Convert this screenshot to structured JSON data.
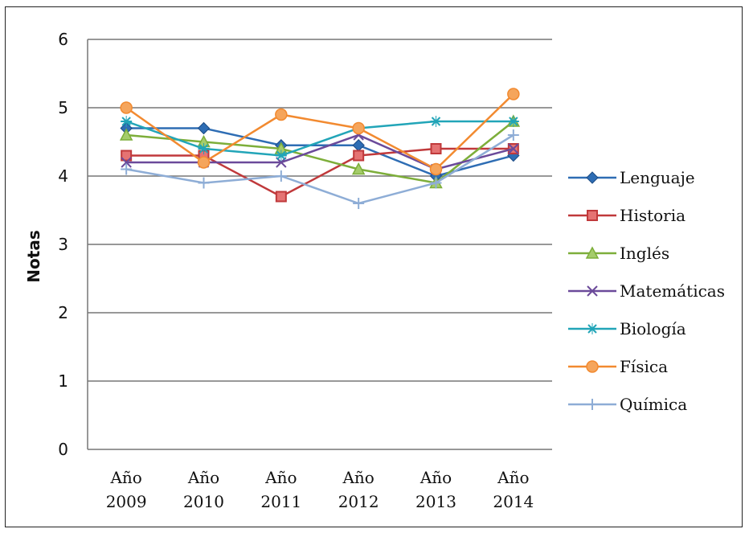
{
  "chart_data": {
    "type": "line",
    "ylabel": "Notas",
    "xlabel": "",
    "ylim": [
      0,
      6
    ],
    "yticks": [
      0,
      1,
      2,
      3,
      4,
      5,
      6
    ],
    "grid": true,
    "legend_position": "right",
    "categories": [
      {
        "top": "Año",
        "bottom": "2009"
      },
      {
        "top": "Año",
        "bottom": "2010"
      },
      {
        "top": "Año",
        "bottom": "2011"
      },
      {
        "top": "Año",
        "bottom": "2012"
      },
      {
        "top": "Año",
        "bottom": "2013"
      },
      {
        "top": "Año",
        "bottom": "2014"
      }
    ],
    "series": [
      {
        "name": "Lenguaje",
        "color": "#2E6DB4",
        "marker": "diamond",
        "values": [
          4.7,
          4.7,
          4.45,
          4.45,
          4.0,
          4.3
        ]
      },
      {
        "name": "Historia",
        "color": "#C0393B",
        "marker": "square",
        "values": [
          4.3,
          4.3,
          3.7,
          4.3,
          4.4,
          4.4
        ]
      },
      {
        "name": "Inglés",
        "color": "#7DAE3A",
        "marker": "triangle",
        "values": [
          4.6,
          4.5,
          4.4,
          4.1,
          3.9,
          4.8
        ]
      },
      {
        "name": "Matemáticas",
        "color": "#6B4A9A",
        "marker": "x",
        "values": [
          4.2,
          4.2,
          4.2,
          4.6,
          4.1,
          4.4
        ]
      },
      {
        "name": "Biología",
        "color": "#22A5B8",
        "marker": "star",
        "values": [
          4.8,
          4.4,
          4.3,
          4.7,
          4.8,
          4.8
        ]
      },
      {
        "name": "Física",
        "color": "#F28A30",
        "marker": "circle",
        "values": [
          5.0,
          4.2,
          4.9,
          4.7,
          4.1,
          5.2
        ]
      },
      {
        "name": "Química",
        "color": "#8EADD6",
        "marker": "plus",
        "values": [
          4.1,
          3.9,
          4.0,
          3.6,
          3.9,
          4.6
        ]
      }
    ]
  }
}
